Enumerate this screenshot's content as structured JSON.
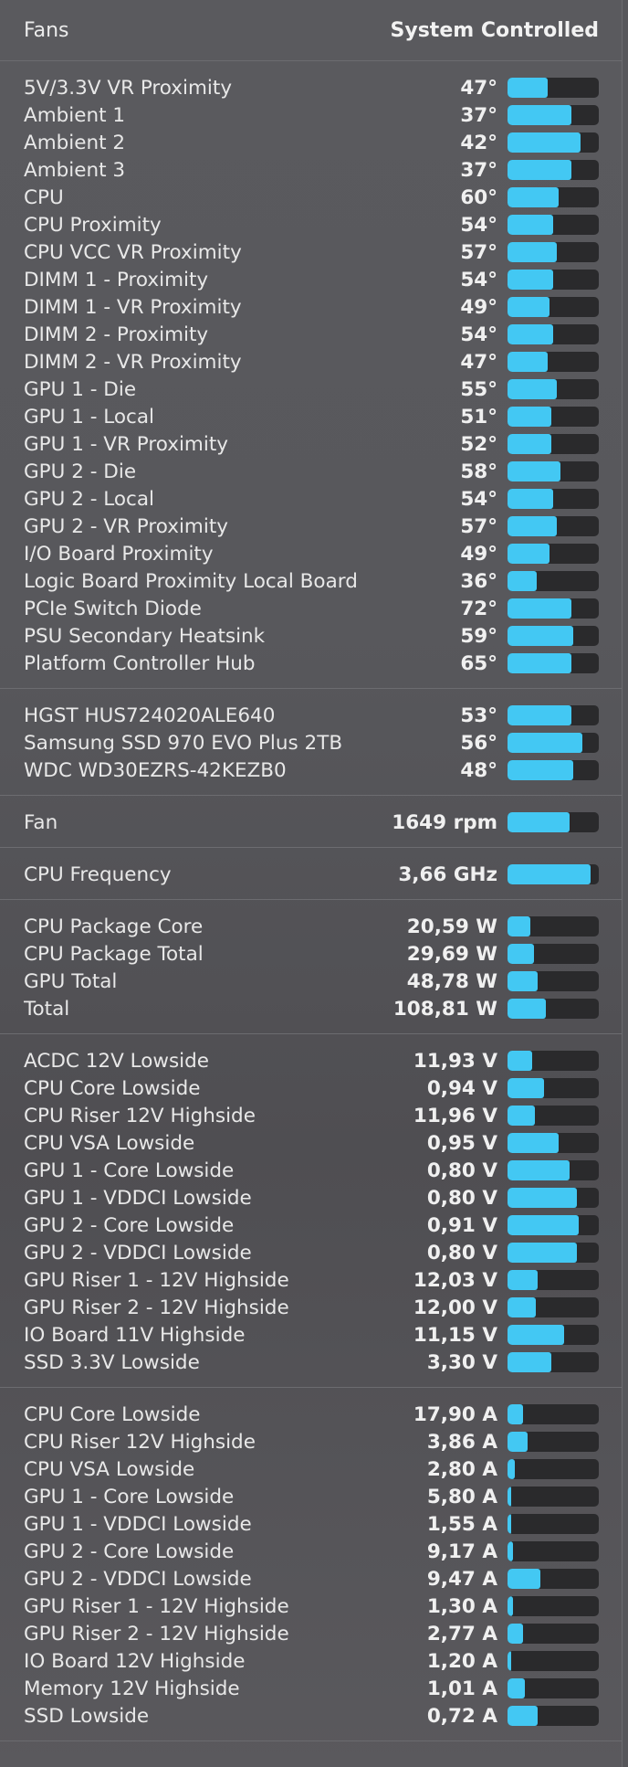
{
  "header": {
    "title": "Fans",
    "mode": "System Controlled"
  },
  "colors": {
    "accent": "#43c8f3",
    "track": "#2a2a2c",
    "background": "#58585c"
  },
  "sections": [
    {
      "key": "temperatures",
      "rows": [
        {
          "label": "5V/3.3V VR Proximity",
          "value": "47°",
          "level": 0.44
        },
        {
          "label": "Ambient 1",
          "value": "37°",
          "level": 0.7
        },
        {
          "label": "Ambient 2",
          "value": "42°",
          "level": 0.8
        },
        {
          "label": "Ambient 3",
          "value": "37°",
          "level": 0.7
        },
        {
          "label": "CPU",
          "value": "60°",
          "level": 0.56
        },
        {
          "label": "CPU Proximity",
          "value": "54°",
          "level": 0.5
        },
        {
          "label": "CPU VCC VR Proximity",
          "value": "57°",
          "level": 0.54
        },
        {
          "label": "DIMM 1 - Proximity",
          "value": "54°",
          "level": 0.5
        },
        {
          "label": "DIMM 1 - VR Proximity",
          "value": "49°",
          "level": 0.46
        },
        {
          "label": "DIMM 2 - Proximity",
          "value": "54°",
          "level": 0.5
        },
        {
          "label": "DIMM 2 - VR Proximity",
          "value": "47°",
          "level": 0.44
        },
        {
          "label": "GPU 1 - Die",
          "value": "55°",
          "level": 0.54
        },
        {
          "label": "GPU 1 - Local",
          "value": "51°",
          "level": 0.48
        },
        {
          "label": "GPU 1 - VR Proximity",
          "value": "52°",
          "level": 0.48
        },
        {
          "label": "GPU 2 - Die",
          "value": "58°",
          "level": 0.58
        },
        {
          "label": "GPU 2 - Local",
          "value": "54°",
          "level": 0.5
        },
        {
          "label": "GPU 2 - VR Proximity",
          "value": "57°",
          "level": 0.54
        },
        {
          "label": "I/O Board Proximity",
          "value": "49°",
          "level": 0.46
        },
        {
          "label": "Logic Board Proximity Local Board",
          "value": "36°",
          "level": 0.32
        },
        {
          "label": "PCIe Switch Diode",
          "value": "72°",
          "level": 0.7
        },
        {
          "label": "PSU Secondary Heatsink",
          "value": "59°",
          "level": 0.72
        },
        {
          "label": "Platform Controller Hub",
          "value": "65°",
          "level": 0.7
        }
      ]
    },
    {
      "key": "disks",
      "rows": [
        {
          "label": "HGST HUS724020ALE640",
          "value": "53°",
          "level": 0.7
        },
        {
          "label": "Samsung SSD 970 EVO Plus 2TB",
          "value": "56°",
          "level": 0.82
        },
        {
          "label": "WDC WD30EZRS-42KEZB0",
          "value": "48°",
          "level": 0.72
        }
      ]
    },
    {
      "key": "fans",
      "rows": [
        {
          "label": "Fan",
          "value": "1649 rpm",
          "level": 0.68
        }
      ]
    },
    {
      "key": "frequency",
      "rows": [
        {
          "label": "CPU Frequency",
          "value": "3,66 GHz",
          "level": 0.91
        }
      ]
    },
    {
      "key": "power",
      "rows": [
        {
          "label": "CPU Package Core",
          "value": "20,59 W",
          "level": 0.25
        },
        {
          "label": "CPU Package Total",
          "value": "29,69 W",
          "level": 0.29
        },
        {
          "label": "GPU Total",
          "value": "48,78 W",
          "level": 0.33
        },
        {
          "label": "Total",
          "value": "108,81 W",
          "level": 0.42
        }
      ]
    },
    {
      "key": "voltage",
      "rows": [
        {
          "label": "ACDC 12V Lowside",
          "value": "11,93 V",
          "level": 0.27
        },
        {
          "label": "CPU Core Lowside",
          "value": "0,94 V",
          "level": 0.4
        },
        {
          "label": "CPU Riser 12V Highside",
          "value": "11,96 V",
          "level": 0.3
        },
        {
          "label": "CPU VSA Lowside",
          "value": "0,95 V",
          "level": 0.56
        },
        {
          "label": "GPU 1 - Core Lowside",
          "value": "0,80 V",
          "level": 0.68
        },
        {
          "label": "GPU 1 - VDDCI Lowside",
          "value": "0,80 V",
          "level": 0.76
        },
        {
          "label": "GPU 2 - Core Lowside",
          "value": "0,91 V",
          "level": 0.78
        },
        {
          "label": "GPU 2 - VDDCI Lowside",
          "value": "0,80 V",
          "level": 0.76
        },
        {
          "label": "GPU Riser 1 - 12V Highside",
          "value": "12,03 V",
          "level": 0.33
        },
        {
          "label": "GPU Riser 2 - 12V Highside",
          "value": "12,00 V",
          "level": 0.31
        },
        {
          "label": "IO Board 11V Highside",
          "value": "11,15 V",
          "level": 0.62
        },
        {
          "label": "SSD 3.3V Lowside",
          "value": "3,30 V",
          "level": 0.48
        }
      ]
    },
    {
      "key": "current",
      "rows": [
        {
          "label": "CPU Core Lowside",
          "value": "17,90 A",
          "level": 0.17
        },
        {
          "label": "CPU Riser 12V Highside",
          "value": "3,86 A",
          "level": 0.22
        },
        {
          "label": "CPU VSA Lowside",
          "value": "2,80 A",
          "level": 0.08
        },
        {
          "label": "GPU 1 - Core Lowside",
          "value": "5,80 A",
          "level": 0.04
        },
        {
          "label": "GPU 1 - VDDCI Lowside",
          "value": "1,55 A",
          "level": 0.04
        },
        {
          "label": "GPU 2 - Core Lowside",
          "value": "9,17 A",
          "level": 0.06
        },
        {
          "label": "GPU 2 - VDDCI Lowside",
          "value": "9,47 A",
          "level": 0.36
        },
        {
          "label": "GPU Riser 1 - 12V Highside",
          "value": "1,30 A",
          "level": 0.06
        },
        {
          "label": "GPU Riser 2 - 12V Highside",
          "value": "2,77 A",
          "level": 0.17
        },
        {
          "label": "IO Board 12V Highside",
          "value": "1,20 A",
          "level": 0.04
        },
        {
          "label": "Memory 12V Highside",
          "value": "1,01 A",
          "level": 0.19
        },
        {
          "label": "SSD Lowside",
          "value": "0,72 A",
          "level": 0.33
        }
      ]
    }
  ]
}
